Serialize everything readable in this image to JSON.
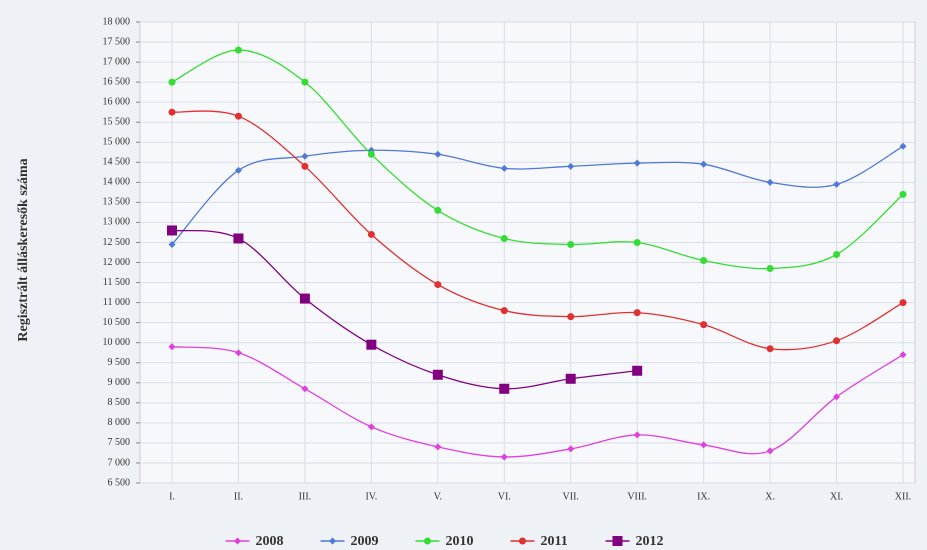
{
  "chart_data": {
    "type": "line",
    "y_label": "Regisztrált álláskeresők száma",
    "categories": [
      "I.",
      "II.",
      "III.",
      "IV.",
      "V.",
      "VI.",
      "VII.",
      "VIII.",
      "IX.",
      "X.",
      "XI.",
      "XII."
    ],
    "series": [
      {
        "name": "2008",
        "color": "#e040e0",
        "marker": "diamond",
        "values": [
          9900,
          9750,
          8850,
          7900,
          7400,
          7150,
          7350,
          7700,
          7450,
          7300,
          8650,
          9700
        ]
      },
      {
        "name": "2009",
        "color": "#4f78d8",
        "marker": "diamond",
        "values": [
          12450,
          14300,
          14650,
          14800,
          14700,
          14350,
          14400,
          14480,
          14450,
          14000,
          13950,
          14900
        ]
      },
      {
        "name": "2010",
        "color": "#33dd33",
        "marker": "circle",
        "values": [
          16500,
          17300,
          16500,
          14700,
          13300,
          12600,
          12450,
          12500,
          12050,
          11850,
          12200,
          13700
        ]
      },
      {
        "name": "2011",
        "color": "#e03030",
        "marker": "circle",
        "values": [
          15750,
          15650,
          14400,
          12700,
          11450,
          10800,
          10650,
          10750,
          10450,
          9850,
          10050,
          11000
        ]
      },
      {
        "name": "2012",
        "color": "#800080",
        "marker": "square",
        "values": [
          12800,
          12600,
          11100,
          9950,
          9200,
          8850,
          9100,
          9300,
          null,
          null,
          null,
          null
        ]
      }
    ],
    "ylim": [
      6500,
      18000
    ],
    "yticks": [
      {
        "value": 6500,
        "label": "6 500"
      },
      {
        "value": 7000,
        "label": "7 000"
      },
      {
        "value": 7500,
        "label": "7 500"
      },
      {
        "value": 8000,
        "label": "8 000"
      },
      {
        "value": 8500,
        "label": "8 500"
      },
      {
        "value": 9000,
        "label": "9 000"
      },
      {
        "value": 9500,
        "label": "9 500"
      },
      {
        "value": 10000,
        "label": "10 000"
      },
      {
        "value": 10500,
        "label": "10 500"
      },
      {
        "value": 11000,
        "label": "11 000"
      },
      {
        "value": 11500,
        "label": "11 500"
      },
      {
        "value": 12000,
        "label": "12 000"
      },
      {
        "value": 12500,
        "label": "12 500"
      },
      {
        "value": 13000,
        "label": "13 000"
      },
      {
        "value": 13500,
        "label": "13 500"
      },
      {
        "value": 14000,
        "label": "14 000"
      },
      {
        "value": 14500,
        "label": "14 500"
      },
      {
        "value": 15000,
        "label": "15 000"
      },
      {
        "value": 15500,
        "label": "15 500"
      },
      {
        "value": 16000,
        "label": "16 000"
      },
      {
        "value": 16500,
        "label": "16 500"
      },
      {
        "value": 17000,
        "label": "17 000"
      },
      {
        "value": 17500,
        "label": "17 500"
      },
      {
        "value": 18000,
        "label": "18 000"
      }
    ],
    "grid": true,
    "legend": "bottom"
  }
}
